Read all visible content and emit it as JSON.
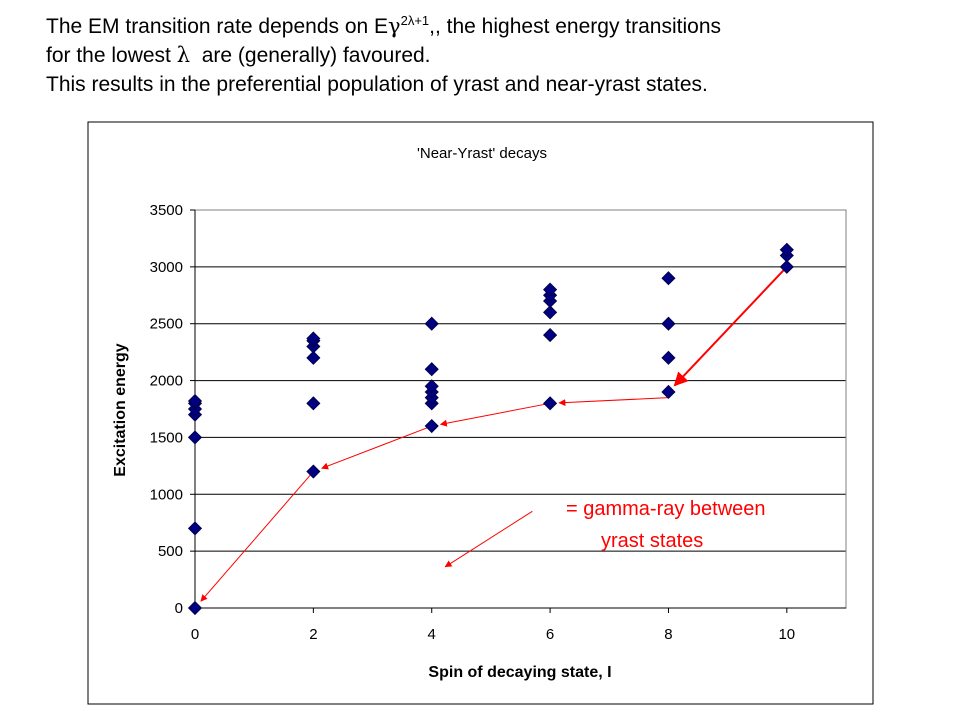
{
  "slide": {
    "line1_prefix": "The EM transition rate depends on E",
    "line1_gamma": "γ",
    "line1_exponent": "2λ+1",
    "line1_suffix": ",, the highest energy transitions",
    "line2_prefix": "for the lowest",
    "line2_lambda": "λ",
    "line2_suffix": "are (generally) favoured.",
    "line3": "This results in the preferential population of yrast and near-yrast states."
  },
  "chart_data": {
    "type": "scatter",
    "title": "'Near-Yrast' decays",
    "xlabel": "Spin of decaying state, I",
    "ylabel": "Excitation energy",
    "xlim": [
      0,
      11
    ],
    "ylim": [
      0,
      3500
    ],
    "xticks": [
      0,
      2,
      4,
      6,
      8,
      10
    ],
    "yticks": [
      0,
      500,
      1000,
      1500,
      2000,
      2500,
      3000,
      3500
    ],
    "grid": "horizontal",
    "marker_color": "#000080",
    "series": [
      {
        "points": [
          [
            0,
            0
          ],
          [
            0,
            700
          ],
          [
            0,
            1500
          ],
          [
            0,
            1700
          ],
          [
            0,
            1750
          ],
          [
            0,
            1800
          ],
          [
            0,
            1820
          ],
          [
            2,
            1200
          ],
          [
            2,
            1800
          ],
          [
            2,
            2200
          ],
          [
            2,
            2300
          ],
          [
            2,
            2350
          ],
          [
            2,
            2370
          ],
          [
            4,
            1600
          ],
          [
            4,
            1800
          ],
          [
            4,
            1850
          ],
          [
            4,
            1900
          ],
          [
            4,
            1950
          ],
          [
            4,
            2100
          ],
          [
            4,
            2500
          ],
          [
            6,
            1800
          ],
          [
            6,
            2400
          ],
          [
            6,
            2600
          ],
          [
            6,
            2700
          ],
          [
            6,
            2750
          ],
          [
            6,
            2800
          ],
          [
            8,
            1900
          ],
          [
            8,
            2200
          ],
          [
            8,
            2500
          ],
          [
            8,
            2900
          ],
          [
            10,
            3000
          ],
          [
            10,
            3100
          ],
          [
            10,
            3150
          ]
        ]
      }
    ],
    "arrows_color": "#ff0000",
    "yrast_arrows": [
      {
        "from": [
          10,
          3000
        ],
        "to": [
          8,
          1900
        ]
      },
      {
        "from": [
          8,
          1850
        ],
        "to": [
          6,
          1800
        ]
      },
      {
        "from": [
          6,
          1800
        ],
        "to": [
          4,
          1600
        ]
      },
      {
        "from": [
          4,
          1600
        ],
        "to": [
          2,
          1200
        ]
      },
      {
        "from": [
          2,
          1200
        ],
        "to": [
          0,
          0
        ]
      }
    ],
    "annotation": {
      "line1": "= gamma-ray between",
      "line2": "yrast states",
      "arrow_from": [
        5.7,
        850
      ],
      "arrow_to": [
        4.1,
        320
      ]
    }
  }
}
